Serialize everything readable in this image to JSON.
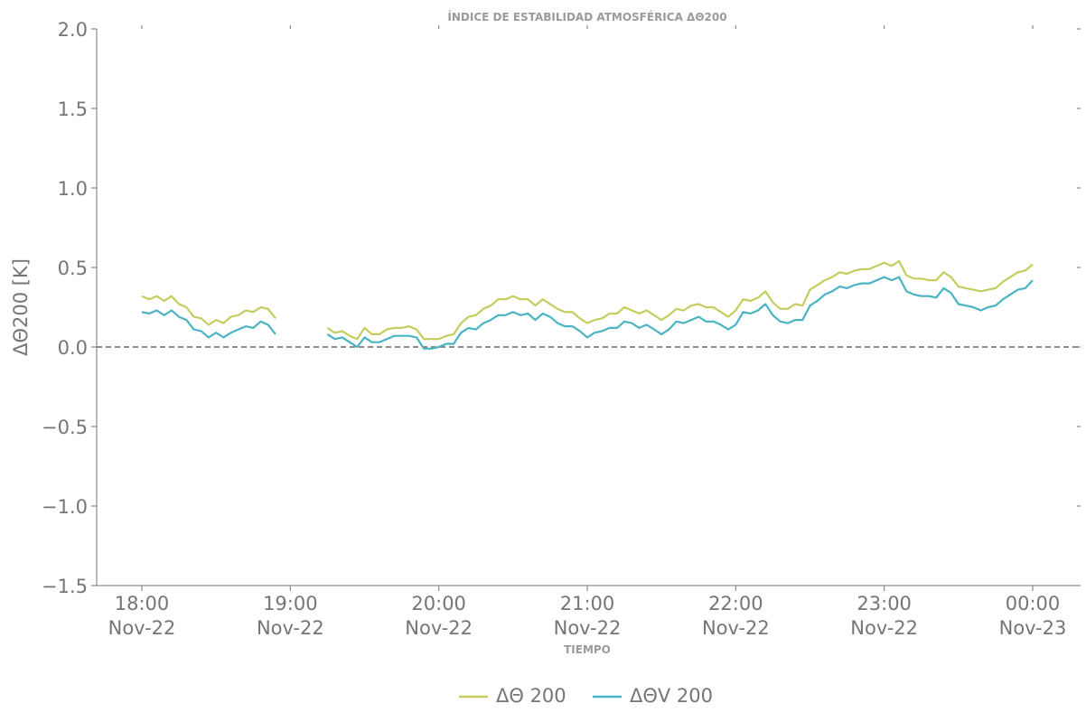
{
  "chart_data": {
    "type": "line",
    "title": "ÍNDICE DE ESTABILIDAD ATMOSFÉRICA ΔΘ200",
    "xlabel": "TIEMPO",
    "ylabel": "ΔΘ200 [K]",
    "ylim": [
      -1.5,
      2.0
    ],
    "xlim_hours": [
      "2024-11-22T17:42",
      "2024-11-23T00:20"
    ],
    "yticks": [
      "2.0",
      "1.5",
      "1.0",
      "0.5",
      "0.0",
      "−0.5",
      "−1.0",
      "−1.5"
    ],
    "ytick_values": [
      2.0,
      1.5,
      1.0,
      0.5,
      0.0,
      -0.5,
      -1.0,
      -1.5
    ],
    "xticks": [
      {
        "time": "18:00",
        "date": "Nov-22",
        "value_min": 0
      },
      {
        "time": "19:00",
        "date": "Nov-22",
        "value_min": 60
      },
      {
        "time": "20:00",
        "date": "Nov-22",
        "value_min": 120
      },
      {
        "time": "21:00",
        "date": "Nov-22",
        "value_min": 180
      },
      {
        "time": "22:00",
        "date": "Nov-22",
        "value_min": 240
      },
      {
        "time": "23:00",
        "date": "Nov-22",
        "value_min": 300
      },
      {
        "time": "00:00",
        "date": "Nov-23",
        "value_min": 360
      }
    ],
    "reference_line": {
      "y": 0.0,
      "style": "dashed",
      "color": "#666666"
    },
    "grid": false,
    "legend_position": "bottom-center",
    "x_minutes_after_1800": {
      "segment_1": [
        0,
        3,
        6,
        9,
        12,
        15,
        18,
        21,
        24,
        27,
        30,
        33,
        36,
        39,
        42,
        45,
        48,
        51,
        54
      ],
      "segment_2": [
        75,
        78,
        81,
        84,
        87,
        90,
        93,
        96,
        99,
        102,
        105,
        108,
        111,
        114,
        117,
        120,
        123,
        126,
        129,
        132,
        135,
        138,
        141,
        144,
        147,
        150,
        153,
        156,
        159,
        162,
        165,
        168,
        171,
        174,
        177,
        180,
        183,
        186,
        189,
        192,
        195,
        198,
        201,
        204,
        207,
        210,
        213,
        216,
        219,
        222,
        225,
        228,
        231,
        234,
        237,
        240,
        243,
        246,
        249,
        252,
        255,
        258,
        261,
        264,
        267,
        270,
        273,
        276,
        279,
        282,
        285,
        288,
        291,
        294,
        297,
        300,
        303,
        306,
        309,
        312,
        315,
        318,
        321,
        324,
        327,
        330,
        333,
        336,
        339,
        342,
        345,
        348,
        351,
        354,
        357,
        360
      ]
    },
    "series": [
      {
        "name": "ΔΘ 200",
        "color": "#c5cc5e",
        "segment_1": [
          0.32,
          0.3,
          0.32,
          0.29,
          0.32,
          0.27,
          0.25,
          0.19,
          0.18,
          0.14,
          0.17,
          0.15,
          0.19,
          0.2,
          0.23,
          0.22,
          0.25,
          0.24,
          0.18
        ],
        "segment_2": [
          0.12,
          0.09,
          0.1,
          0.07,
          0.05,
          0.12,
          0.08,
          0.08,
          0.11,
          0.12,
          0.12,
          0.13,
          0.11,
          0.05,
          0.05,
          0.05,
          0.07,
          0.08,
          0.15,
          0.19,
          0.2,
          0.24,
          0.26,
          0.3,
          0.3,
          0.32,
          0.3,
          0.3,
          0.26,
          0.3,
          0.27,
          0.24,
          0.22,
          0.22,
          0.18,
          0.15,
          0.17,
          0.18,
          0.21,
          0.21,
          0.25,
          0.23,
          0.21,
          0.23,
          0.2,
          0.17,
          0.2,
          0.24,
          0.23,
          0.26,
          0.27,
          0.25,
          0.25,
          0.22,
          0.19,
          0.23,
          0.3,
          0.29,
          0.31,
          0.35,
          0.28,
          0.24,
          0.24,
          0.27,
          0.26,
          0.36,
          0.39,
          0.42,
          0.44,
          0.47,
          0.46,
          0.48,
          0.49,
          0.49,
          0.51,
          0.53,
          0.51,
          0.54,
          0.45,
          0.43,
          0.43,
          0.42,
          0.42,
          0.47,
          0.44,
          0.38,
          0.37,
          0.36,
          0.35,
          0.36,
          0.37,
          0.41,
          0.44,
          0.47,
          0.48,
          0.52
        ]
      },
      {
        "name": "ΔΘV 200",
        "color": "#4ab3c4",
        "segment_1": [
          0.22,
          0.21,
          0.23,
          0.2,
          0.23,
          0.19,
          0.17,
          0.11,
          0.1,
          0.06,
          0.09,
          0.06,
          0.09,
          0.11,
          0.13,
          0.12,
          0.16,
          0.14,
          0.08
        ],
        "segment_2": [
          0.08,
          0.05,
          0.06,
          0.03,
          0.0,
          0.06,
          0.03,
          0.03,
          0.05,
          0.07,
          0.07,
          0.07,
          0.06,
          -0.01,
          -0.01,
          0.0,
          0.02,
          0.02,
          0.09,
          0.12,
          0.11,
          0.15,
          0.17,
          0.2,
          0.2,
          0.22,
          0.2,
          0.21,
          0.17,
          0.21,
          0.19,
          0.15,
          0.13,
          0.13,
          0.1,
          0.06,
          0.09,
          0.1,
          0.12,
          0.12,
          0.16,
          0.15,
          0.12,
          0.14,
          0.11,
          0.08,
          0.11,
          0.16,
          0.15,
          0.17,
          0.19,
          0.16,
          0.16,
          0.14,
          0.11,
          0.14,
          0.22,
          0.21,
          0.23,
          0.27,
          0.2,
          0.16,
          0.15,
          0.17,
          0.17,
          0.26,
          0.29,
          0.33,
          0.35,
          0.38,
          0.37,
          0.39,
          0.4,
          0.4,
          0.42,
          0.44,
          0.42,
          0.44,
          0.35,
          0.33,
          0.32,
          0.32,
          0.31,
          0.37,
          0.34,
          0.27,
          0.26,
          0.25,
          0.23,
          0.25,
          0.26,
          0.3,
          0.33,
          0.36,
          0.37,
          0.42
        ]
      }
    ]
  }
}
